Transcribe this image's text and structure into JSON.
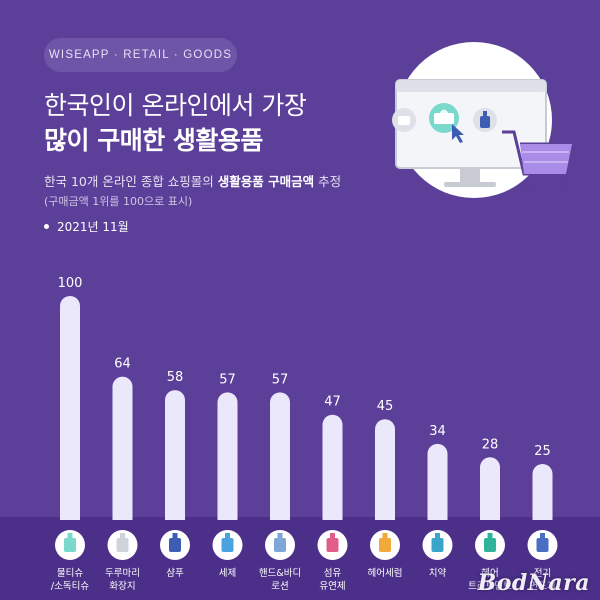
{
  "header": {
    "tag": "WISEAPP · RETAIL · GOODS",
    "title_line1": "한국인이 온라인에서 가장",
    "title_line2": "많이 구매한 생활용품",
    "subtitle_pre": "한국 10개 온라인 종합 쇼핑몰의 ",
    "subtitle_strong": "생활용품 구매금액",
    "subtitle_post": " 추정",
    "note": "(구매금액 1위를 100으로 표시)",
    "date": "2021년 11월"
  },
  "colors": {
    "background": "#5b3f99",
    "bar": "#ece8fb",
    "strip": "#4b2f88",
    "icon_circle": "#ffffff"
  },
  "icons": [
    "tissue-box-icon",
    "toilet-paper-icon",
    "shampoo-icon",
    "detergent-icon",
    "lotion-icon",
    "fabric-softener-icon",
    "hair-serum-icon",
    "toothpaste-icon",
    "hair-treatment-icon",
    "electric-shaver-icon"
  ],
  "chart_data": {
    "type": "bar",
    "categories": [
      "물티슈\n/소독티슈",
      "두루마리\n화장지",
      "샴푸",
      "세제",
      "핸드&바디\n로션",
      "섬유\n유연제",
      "헤어세럼",
      "치약",
      "헤어\n트리트먼트",
      "전기\n면도기"
    ],
    "values": [
      100,
      64,
      58,
      57,
      57,
      47,
      45,
      34,
      28,
      25
    ],
    "ylim": [
      0,
      100
    ],
    "grid": false,
    "legend": "none"
  },
  "watermark": "BodNara"
}
